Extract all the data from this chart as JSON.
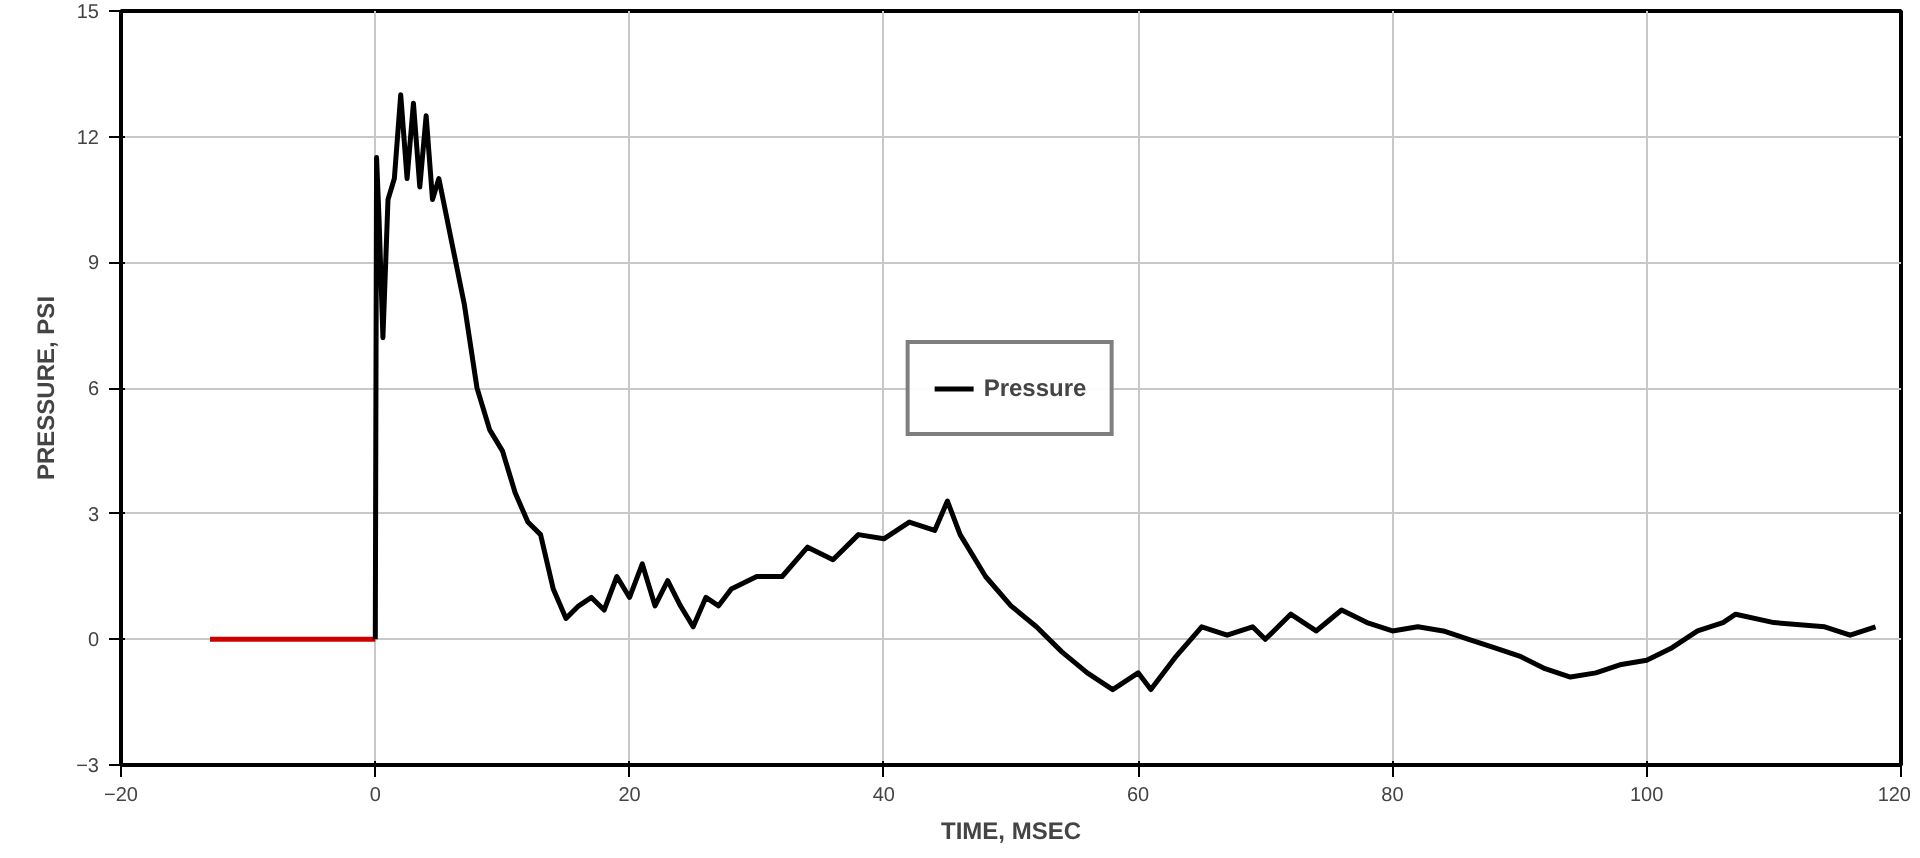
{
  "chart_data": {
    "type": "line",
    "xlabel": "TIME, MSEC",
    "ylabel": "PRESSURE, PSI",
    "xlim": [
      -20,
      120
    ],
    "ylim": [
      -3,
      15
    ],
    "xticks": [
      -20,
      0,
      20,
      40,
      60,
      80,
      100,
      120
    ],
    "yticks": [
      -3,
      0,
      3,
      6,
      9,
      12,
      15
    ],
    "grid": true,
    "legend": "center",
    "line_style": "solid",
    "series": [
      {
        "color": "#cc0000",
        "x": [
          -13,
          -8,
          -4,
          0
        ],
        "values": [
          0,
          0,
          0,
          0
        ]
      },
      {
        "name": "Pressure",
        "color": "#000000",
        "x": [
          0,
          0.1,
          0.3,
          0.6,
          1,
          1.5,
          2,
          2.5,
          3,
          3.5,
          4,
          4.5,
          5,
          6,
          7,
          8,
          9,
          10,
          11,
          12,
          13,
          14,
          15,
          16,
          17,
          18,
          19,
          20,
          21,
          22,
          23,
          24,
          25,
          26,
          27,
          28,
          30,
          32,
          34,
          36,
          38,
          40,
          42,
          44,
          45,
          46,
          48,
          50,
          52,
          54,
          56,
          58,
          60,
          61,
          63,
          65,
          67,
          69,
          70,
          72,
          74,
          76,
          78,
          80,
          82,
          84,
          86,
          88,
          90,
          92,
          94,
          96,
          98,
          100,
          102,
          104,
          106,
          107,
          110,
          114,
          116,
          118
        ],
        "values": [
          0,
          11.5,
          10,
          7.2,
          10.5,
          11,
          13,
          11,
          12.8,
          10.8,
          12.5,
          10.5,
          11,
          9.5,
          8,
          6,
          5,
          4.5,
          3.5,
          2.8,
          2.5,
          1.2,
          0.5,
          0.8,
          1.0,
          0.7,
          1.5,
          1.0,
          1.8,
          0.8,
          1.4,
          0.8,
          0.3,
          1.0,
          0.8,
          1.2,
          1.5,
          1.5,
          2.2,
          1.9,
          2.5,
          2.4,
          2.8,
          2.6,
          3.3,
          2.5,
          1.5,
          0.8,
          0.3,
          -0.3,
          -0.8,
          -1.2,
          -0.8,
          -1.2,
          -0.4,
          0.3,
          0.1,
          0.3,
          0.0,
          0.6,
          0.2,
          0.7,
          0.4,
          0.2,
          0.3,
          0.2,
          0,
          -0.2,
          -0.4,
          -0.7,
          -0.9,
          -0.8,
          -0.6,
          -0.5,
          -0.2,
          0.2,
          0.4,
          0.6,
          0.4,
          0.3,
          0.1,
          0.3
        ]
      }
    ]
  }
}
